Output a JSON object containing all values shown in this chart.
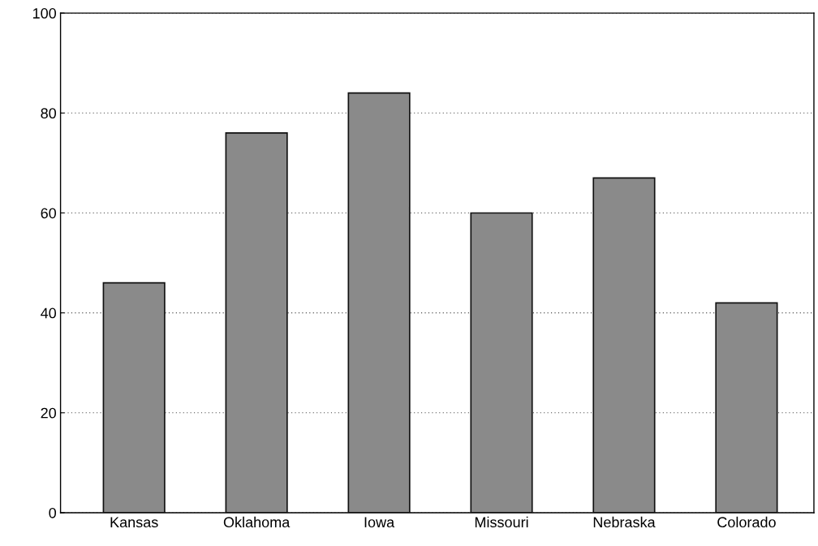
{
  "chart_data": {
    "type": "bar",
    "categories": [
      "Kansas",
      "Oklahoma",
      "Iowa",
      "Missouri",
      "Nebraska",
      "Colorado"
    ],
    "values": [
      46,
      76,
      84,
      60,
      67,
      42
    ],
    "color": "#8a8a8a",
    "ylim": [
      0,
      100
    ],
    "yticks": [
      0,
      20,
      40,
      60,
      80,
      100
    ],
    "grid": "y",
    "legend": false
  }
}
